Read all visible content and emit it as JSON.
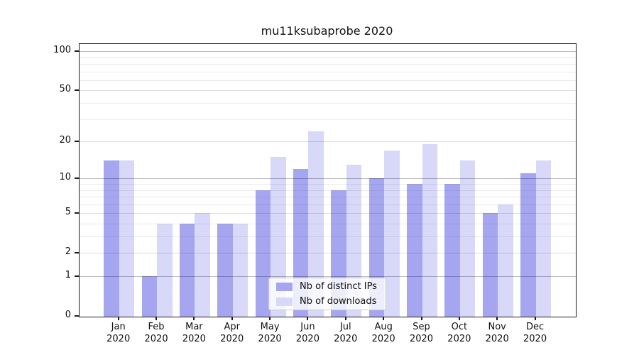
{
  "chart_data": {
    "type": "bar",
    "title": "mu11ksubaprobe 2020",
    "categories": [
      "Jan 2020",
      "Feb 2020",
      "Mar 2020",
      "Apr 2020",
      "May 2020",
      "Jun 2020",
      "Jul 2020",
      "Aug 2020",
      "Sep 2020",
      "Oct 2020",
      "Nov 2020",
      "Dec 2020"
    ],
    "series": [
      {
        "name": "Nb of distinct IPs",
        "color": "#a6a6f0",
        "values": [
          14,
          1,
          4,
          4,
          8,
          12,
          8,
          10,
          9,
          9,
          5,
          11
        ]
      },
      {
        "name": "Nb of downloads",
        "color": "#d8d8f8",
        "values": [
          14,
          4,
          5,
          4,
          15,
          24,
          13,
          17,
          19,
          14,
          6,
          14
        ]
      }
    ],
    "xlabel": "",
    "ylabel": "",
    "yscale": "log1p",
    "ylim": [
      0,
      112
    ],
    "yticks": [
      0,
      1,
      2,
      5,
      10,
      20,
      50,
      100
    ],
    "gridlines": {
      "major": [
        1,
        10,
        100
      ],
      "labeled_minor": [
        2,
        5,
        20,
        50
      ],
      "minor": [
        3,
        4,
        6,
        7,
        8,
        9,
        30,
        40,
        60,
        70,
        80,
        90
      ]
    },
    "grid": true,
    "legend_position": "bottom-center",
    "bar_arrangement": "grouped-pairs"
  },
  "legend": {
    "items": [
      {
        "label": "Nb of distinct IPs",
        "color": "#a6a6f0"
      },
      {
        "label": "Nb of downloads",
        "color": "#d8d8f8"
      }
    ]
  },
  "colors": {
    "bar_dark": "#a6a6f0",
    "bar_light": "#d8d8f8",
    "axis": "#1c1c1c",
    "grid_major": "rgba(0,0,0,0.26)",
    "grid_labeled_minor": "rgba(0,0,0,0.13)",
    "grid_minor": "rgba(0,0,0,0.08)",
    "background": "#ffffff"
  }
}
